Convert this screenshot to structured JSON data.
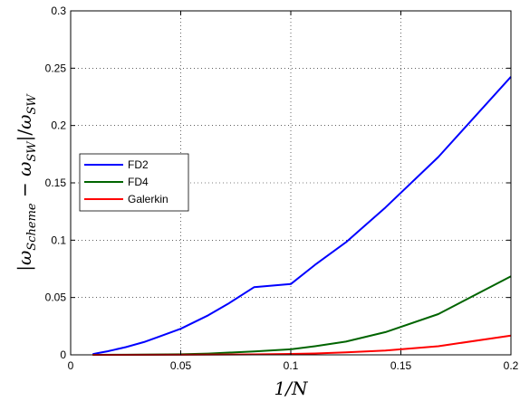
{
  "chart_data": {
    "type": "line",
    "xlabel": "1/N",
    "ylabel": "|ω_Scheme − ω_SW|/ω_SW",
    "xlim": [
      0,
      0.2
    ],
    "ylim": [
      0,
      0.3
    ],
    "xticks": [
      "0",
      "0.05",
      "0.1",
      "0.15",
      "0.2"
    ],
    "yticks": [
      "0",
      "0.05",
      "0.1",
      "0.15",
      "0.2",
      "0.25",
      "0.3"
    ],
    "grid": true,
    "legend_position": "middle-left",
    "series": [
      {
        "name": "FD2",
        "color": "#0000ff",
        "x": [
          0.01,
          0.0125,
          0.0167,
          0.02,
          0.025,
          0.0333,
          0.04,
          0.05,
          0.0625,
          0.0714,
          0.0833,
          0.1,
          0.111,
          0.125,
          0.143,
          0.167,
          0.2
        ],
        "y": [
          0.0006,
          0.0016,
          0.0031,
          0.0045,
          0.0067,
          0.0111,
          0.0157,
          0.0227,
          0.0345,
          0.0444,
          0.059,
          0.0617,
          0.0785,
          0.0981,
          0.1285,
          0.1725,
          0.2425
        ]
      },
      {
        "name": "FD4",
        "color": "#006400",
        "x": [
          0.01,
          0.025,
          0.05,
          0.0625,
          0.0833,
          0.1,
          0.111,
          0.125,
          0.143,
          0.167,
          0.2
        ],
        "y": [
          0,
          0.0001,
          0.0005,
          0.0011,
          0.003,
          0.0048,
          0.0075,
          0.0115,
          0.0198,
          0.0355,
          0.0685
        ]
      },
      {
        "name": "Galerkin",
        "color": "#ff0000",
        "x": [
          0.01,
          0.05,
          0.0833,
          0.1,
          0.111,
          0.125,
          0.143,
          0.167,
          0.2
        ],
        "y": [
          0,
          0.0001,
          0.0004,
          0.0008,
          0.0012,
          0.0021,
          0.0038,
          0.0075,
          0.0168
        ]
      }
    ]
  }
}
